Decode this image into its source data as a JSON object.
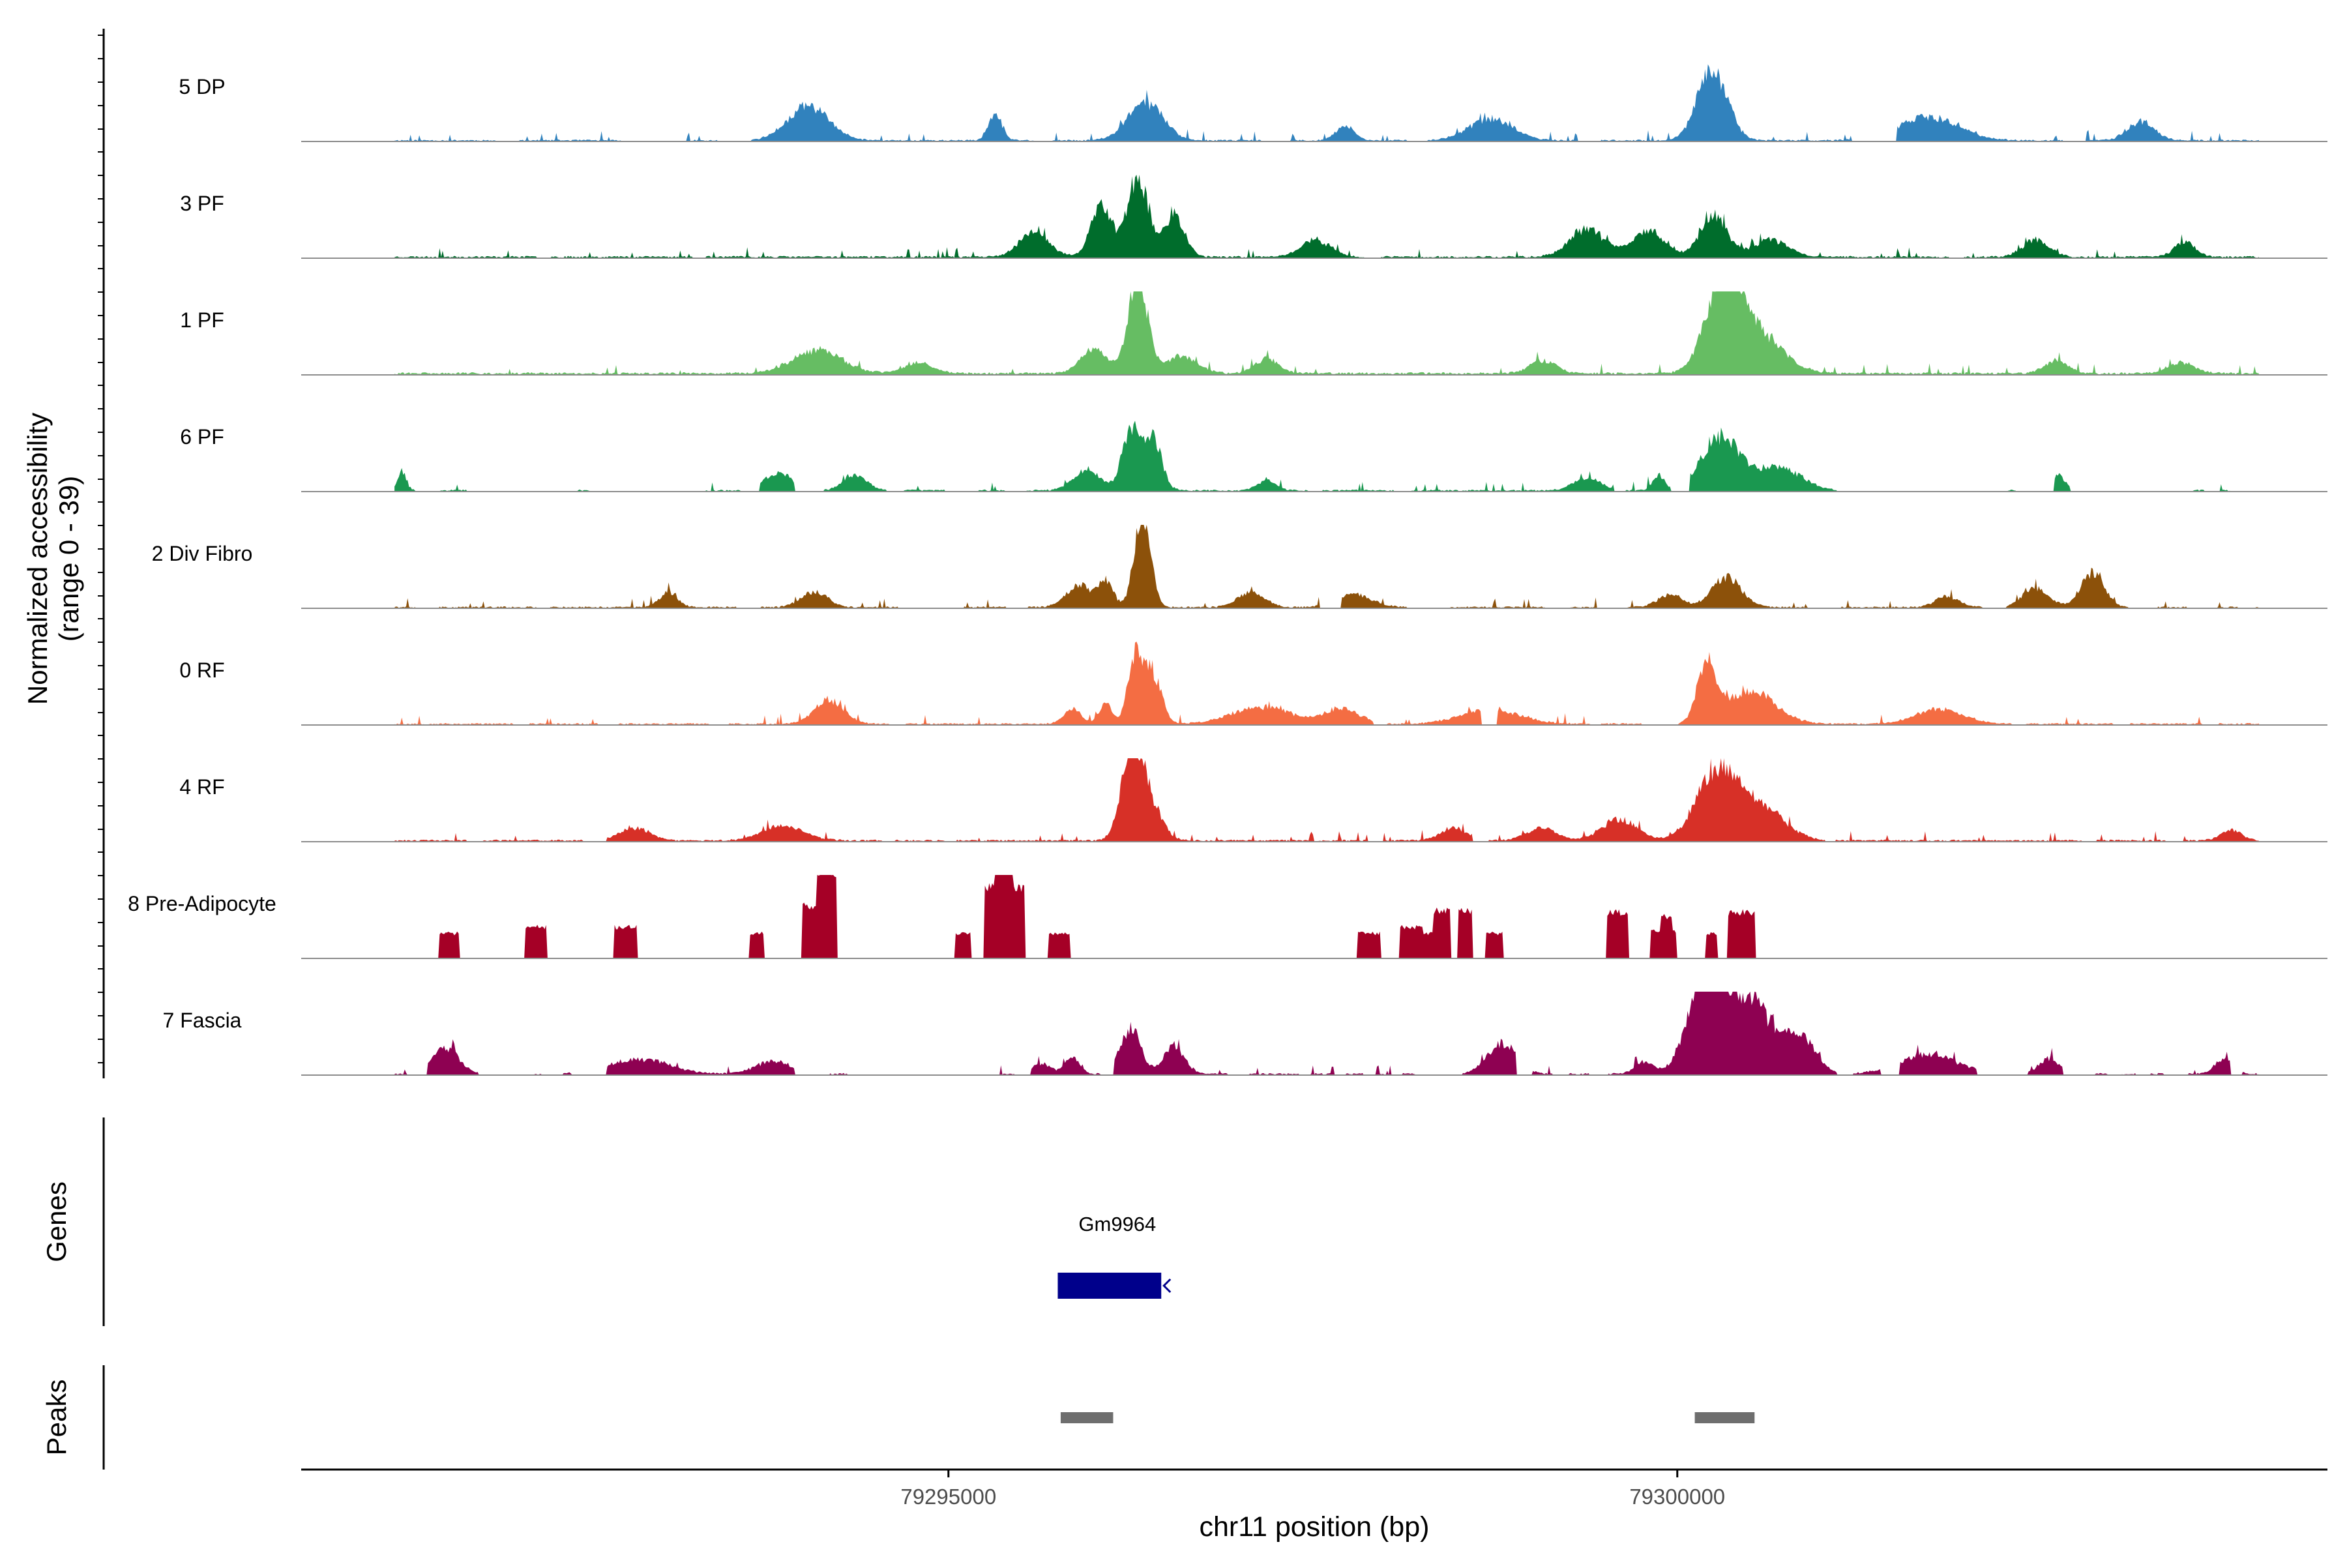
{
  "chart_data": {
    "type": "area",
    "title": "",
    "ylabel_line1": "Normalized accessibility",
    "ylabel_line2": "(range 0 - 39)",
    "yrange": [
      0,
      39
    ],
    "xlabel": "chr11 position (bp)",
    "xlim": [
      79290560,
      79304460
    ],
    "x_ticks": [
      79295000,
      79300000
    ],
    "x_tick_labels": [
      "79295000",
      "79300000"
    ],
    "genes_label": "Genes",
    "peaks_label": "Peaks",
    "tracks": [
      {
        "name": "5 DP",
        "color": "#3182BD",
        "style": "smooth",
        "seed": 11,
        "noise": 0.55,
        "start": 79291200,
        "end": 79303990,
        "peaks": [
          [
            79294040,
            140,
            16
          ],
          [
            79295320,
            45,
            13
          ],
          [
            79296350,
            120,
            18
          ],
          [
            79297720,
            60,
            7
          ],
          [
            79298720,
            150,
            10
          ],
          [
            79300240,
            100,
            34
          ],
          [
            79301720,
            200,
            11
          ],
          [
            79303180,
            90,
            9
          ]
        ],
        "gaps": [
          [
            79291900,
            79292050
          ],
          [
            79292760,
            79293200
          ],
          [
            79293420,
            79293640
          ],
          [
            79295600,
            79295700
          ],
          [
            79297150,
            79297340
          ],
          [
            79298150,
            79298280
          ],
          [
            79299330,
            79299470
          ],
          [
            79301200,
            79301500
          ],
          [
            79302650,
            79302800
          ]
        ]
      },
      {
        "name": "3 PF",
        "color": "#006D2C",
        "style": "smooth",
        "seed": 23,
        "noise": 0.65,
        "start": 79291200,
        "end": 79303990,
        "peaks": [
          [
            79295590,
            100,
            12
          ],
          [
            79296050,
            70,
            26
          ],
          [
            79296300,
            70,
            38
          ],
          [
            79296550,
            70,
            20
          ],
          [
            79297520,
            100,
            8
          ],
          [
            79299380,
            120,
            13
          ],
          [
            79299800,
            110,
            12
          ],
          [
            79300250,
            90,
            20
          ],
          [
            79300640,
            120,
            8
          ],
          [
            79302460,
            90,
            8
          ],
          [
            79303480,
            70,
            7
          ]
        ],
        "gaps": [
          [
            79292180,
            79292260
          ],
          [
            79293250,
            79293330
          ],
          [
            79297860,
            79297960
          ],
          [
            79301870,
            79301960
          ]
        ]
      },
      {
        "name": "1 PF",
        "color": "#66BD63",
        "style": "smooth",
        "seed": 31,
        "noise": 0.75,
        "start": 79291200,
        "end": 79303990,
        "peaks": [
          [
            79294100,
            170,
            11
          ],
          [
            79294800,
            100,
            5
          ],
          [
            79296000,
            90,
            12
          ],
          [
            79296300,
            65,
            46
          ],
          [
            79296600,
            110,
            8
          ],
          [
            79297180,
            80,
            7
          ],
          [
            79299080,
            90,
            6
          ],
          [
            79300320,
            120,
            42
          ],
          [
            79300550,
            170,
            18
          ],
          [
            79302600,
            80,
            6
          ],
          [
            79303460,
            90,
            5
          ]
        ],
        "gaps": []
      },
      {
        "name": "6 PF",
        "color": "#1A9850",
        "style": "smooth",
        "seed": 37,
        "noise": 0.6,
        "start": 79291200,
        "end": 79303990,
        "peaks": [
          [
            79291250,
            30,
            9
          ],
          [
            79293830,
            100,
            8
          ],
          [
            79294360,
            80,
            7
          ],
          [
            79295950,
            90,
            10
          ],
          [
            79296250,
            60,
            28
          ],
          [
            79296400,
            60,
            26
          ],
          [
            79297180,
            60,
            5
          ],
          [
            79299380,
            90,
            6
          ],
          [
            79299870,
            40,
            7
          ],
          [
            79300300,
            130,
            25
          ],
          [
            79300700,
            150,
            11
          ],
          [
            79302610,
            50,
            7
          ]
        ],
        "gaps": [
          [
            79291350,
            79291500
          ],
          [
            79291700,
            79292450
          ],
          [
            79292550,
            79293320
          ],
          [
            79293580,
            79293700
          ],
          [
            79293950,
            79294140
          ],
          [
            79294580,
            79294680
          ],
          [
            79294980,
            79295200
          ],
          [
            79295400,
            79295520
          ],
          [
            79297480,
            79297560
          ],
          [
            79298060,
            79298170
          ],
          [
            79299570,
            79299640
          ],
          [
            79299960,
            79300080
          ],
          [
            79301100,
            79302260
          ],
          [
            79302330,
            79302580
          ],
          [
            79302700,
            79303530
          ],
          [
            79303620,
            79303720
          ],
          [
            79303800,
            79303990
          ]
        ]
      },
      {
        "name": "2 Div Fibro",
        "color": "#8C510A",
        "style": "smooth",
        "seed": 41,
        "noise": 0.55,
        "start": 79291200,
        "end": 79303990,
        "peaks": [
          [
            79293080,
            60,
            7
          ],
          [
            79294080,
            90,
            7
          ],
          [
            79295900,
            90,
            10
          ],
          [
            79296080,
            50,
            12
          ],
          [
            79296330,
            55,
            44
          ],
          [
            79297080,
            90,
            7
          ],
          [
            79297780,
            120,
            6
          ],
          [
            79299950,
            80,
            6
          ],
          [
            79300340,
            100,
            14
          ],
          [
            79301850,
            80,
            5
          ],
          [
            79302460,
            90,
            9
          ],
          [
            79302850,
            80,
            16
          ]
        ],
        "gaps": [
          [
            79291350,
            79291500
          ],
          [
            79292180,
            79292260
          ],
          [
            79293550,
            79293700
          ],
          [
            79294660,
            79295100
          ],
          [
            79295400,
            79295540
          ],
          [
            79297550,
            79297690
          ],
          [
            79298150,
            79298430
          ],
          [
            79299100,
            79299250
          ],
          [
            79299450,
            79299650
          ],
          [
            79300900,
            79301100
          ],
          [
            79302100,
            79302250
          ],
          [
            79303100,
            79303290
          ],
          [
            79303500,
            79303700
          ],
          [
            79303850,
            79303960
          ]
        ]
      },
      {
        "name": "0 RF",
        "color": "#F46D43",
        "style": "smooth",
        "seed": 53,
        "noise": 0.55,
        "start": 79291200,
        "end": 79303990,
        "peaks": [
          [
            79294180,
            100,
            11
          ],
          [
            79295850,
            60,
            7
          ],
          [
            79296080,
            45,
            9
          ],
          [
            79296280,
            50,
            30
          ],
          [
            79296400,
            60,
            24
          ],
          [
            79297150,
            200,
            8
          ],
          [
            79297700,
            120,
            7
          ],
          [
            79298720,
            200,
            7
          ],
          [
            79300200,
            60,
            28
          ],
          [
            79300500,
            170,
            16
          ],
          [
            79301800,
            160,
            7
          ]
        ],
        "gaps": [
          [
            79292020,
            79292120
          ],
          [
            79292600,
            79292730
          ],
          [
            79293370,
            79293480
          ],
          [
            79294600,
            79294700
          ],
          [
            79297920,
            79298000
          ],
          [
            79298660,
            79298760
          ],
          [
            79299410,
            79299470
          ],
          [
            79299760,
            79300000
          ],
          [
            79302300,
            79302380
          ],
          [
            79303000,
            79303100
          ],
          [
            79303620,
            79303700
          ]
        ]
      },
      {
        "name": "4 RF",
        "color": "#D73027",
        "style": "smooth",
        "seed": 61,
        "noise": 0.6,
        "start": 79291200,
        "end": 79303990,
        "peaks": [
          [
            79292850,
            100,
            6
          ],
          [
            79293870,
            140,
            7
          ],
          [
            79296250,
            70,
            32
          ],
          [
            79296350,
            90,
            22
          ],
          [
            79298470,
            90,
            6
          ],
          [
            79299070,
            100,
            6
          ],
          [
            79299600,
            120,
            10
          ],
          [
            79300280,
            140,
            34
          ],
          [
            79300600,
            150,
            14
          ],
          [
            79303800,
            70,
            5
          ]
        ],
        "gaps": [
          [
            79291700,
            79291800
          ],
          [
            79292500,
            79292650
          ],
          [
            79294550,
            79294620
          ],
          [
            79294980,
            79295050
          ],
          [
            79297880,
            79297980
          ],
          [
            79298600,
            79298700
          ],
          [
            79301020,
            79301080
          ],
          [
            79302780,
            79302870
          ],
          [
            79303360,
            79303460
          ]
        ]
      },
      {
        "name": "8 Pre-Adipocyte",
        "color": "#A50026",
        "style": "spiky",
        "seed": 71,
        "noise": 0,
        "start": 79291200,
        "end": 79303990,
        "blocks": [
          [
            79291510,
            79291640,
            12
          ],
          [
            79292100,
            79292240,
            15
          ],
          [
            79292710,
            79292860,
            15
          ],
          [
            79293640,
            79293730,
            12
          ],
          [
            79294000,
            79294220,
            25
          ],
          [
            79294100,
            79294230,
            42
          ],
          [
            79295050,
            79295150,
            12
          ],
          [
            79295250,
            79295520,
            34
          ],
          [
            79295320,
            79295440,
            45
          ],
          [
            79295690,
            79295830,
            12
          ],
          [
            79297810,
            79297960,
            12
          ],
          [
            79298100,
            79298250,
            15
          ],
          [
            79298250,
            79298340,
            12
          ],
          [
            79298330,
            79298440,
            23
          ],
          [
            79298500,
            79298590,
            23
          ],
          [
            79298690,
            79298800,
            12
          ],
          [
            79299520,
            79299660,
            22
          ],
          [
            79299820,
            79299990,
            13
          ],
          [
            79299890,
            79299960,
            20
          ],
          [
            79300200,
            79300270,
            12
          ],
          [
            79300350,
            79300530,
            22
          ],
          [
            79300420,
            79300520,
            15
          ]
        ]
      },
      {
        "name": "7 Fascia",
        "color": "#8E0152",
        "style": "smooth",
        "seed": 83,
        "noise": 0.6,
        "start": 79291200,
        "end": 79303990,
        "peaks": [
          [
            79291550,
            90,
            12
          ],
          [
            79292880,
            200,
            7
          ],
          [
            79293800,
            120,
            6
          ],
          [
            79295640,
            60,
            5
          ],
          [
            79295850,
            50,
            8
          ],
          [
            79296250,
            70,
            22
          ],
          [
            79296550,
            70,
            13
          ],
          [
            79298800,
            100,
            14
          ],
          [
            79299770,
            60,
            6
          ],
          [
            79300200,
            120,
            46
          ],
          [
            79300500,
            160,
            33
          ],
          [
            79300850,
            100,
            16
          ],
          [
            79301720,
            200,
            9
          ],
          [
            79302550,
            70,
            7
          ],
          [
            79303750,
            60,
            7
          ]
        ],
        "gaps": [
          [
            79291290,
            79291420
          ],
          [
            79291780,
            79292150
          ],
          [
            79292230,
            79292350
          ],
          [
            79292420,
            79292650
          ],
          [
            79293950,
            79294180
          ],
          [
            79294330,
            79295350
          ],
          [
            79295460,
            79295560
          ],
          [
            79296050,
            79296130
          ],
          [
            79296920,
            79297040
          ],
          [
            79297410,
            79297480
          ],
          [
            79297650,
            79297720
          ],
          [
            79297850,
            79297920
          ],
          [
            79298040,
            79298090
          ],
          [
            79298210,
            79298520
          ],
          [
            79298900,
            79299000
          ],
          [
            79299150,
            79299250
          ],
          [
            79299400,
            79299520
          ],
          [
            79301100,
            79301200
          ],
          [
            79301400,
            79301520
          ],
          [
            79302060,
            79302400
          ],
          [
            79302650,
            79302860
          ],
          [
            79302960,
            79303040
          ],
          [
            79303150,
            79303240
          ],
          [
            79303350,
            79303500
          ],
          [
            79303800,
            79303870
          ]
        ]
      }
    ],
    "genes": [
      {
        "name": "Gm9964",
        "start": 79295750,
        "end": 79296460,
        "strand": "-",
        "color": "#00008B"
      }
    ],
    "peaks": [
      {
        "start": 79295770,
        "end": 79296130,
        "color": "#6E6E6E"
      },
      {
        "start": 79300120,
        "end": 79300530,
        "color": "#6E6E6E"
      }
    ]
  }
}
